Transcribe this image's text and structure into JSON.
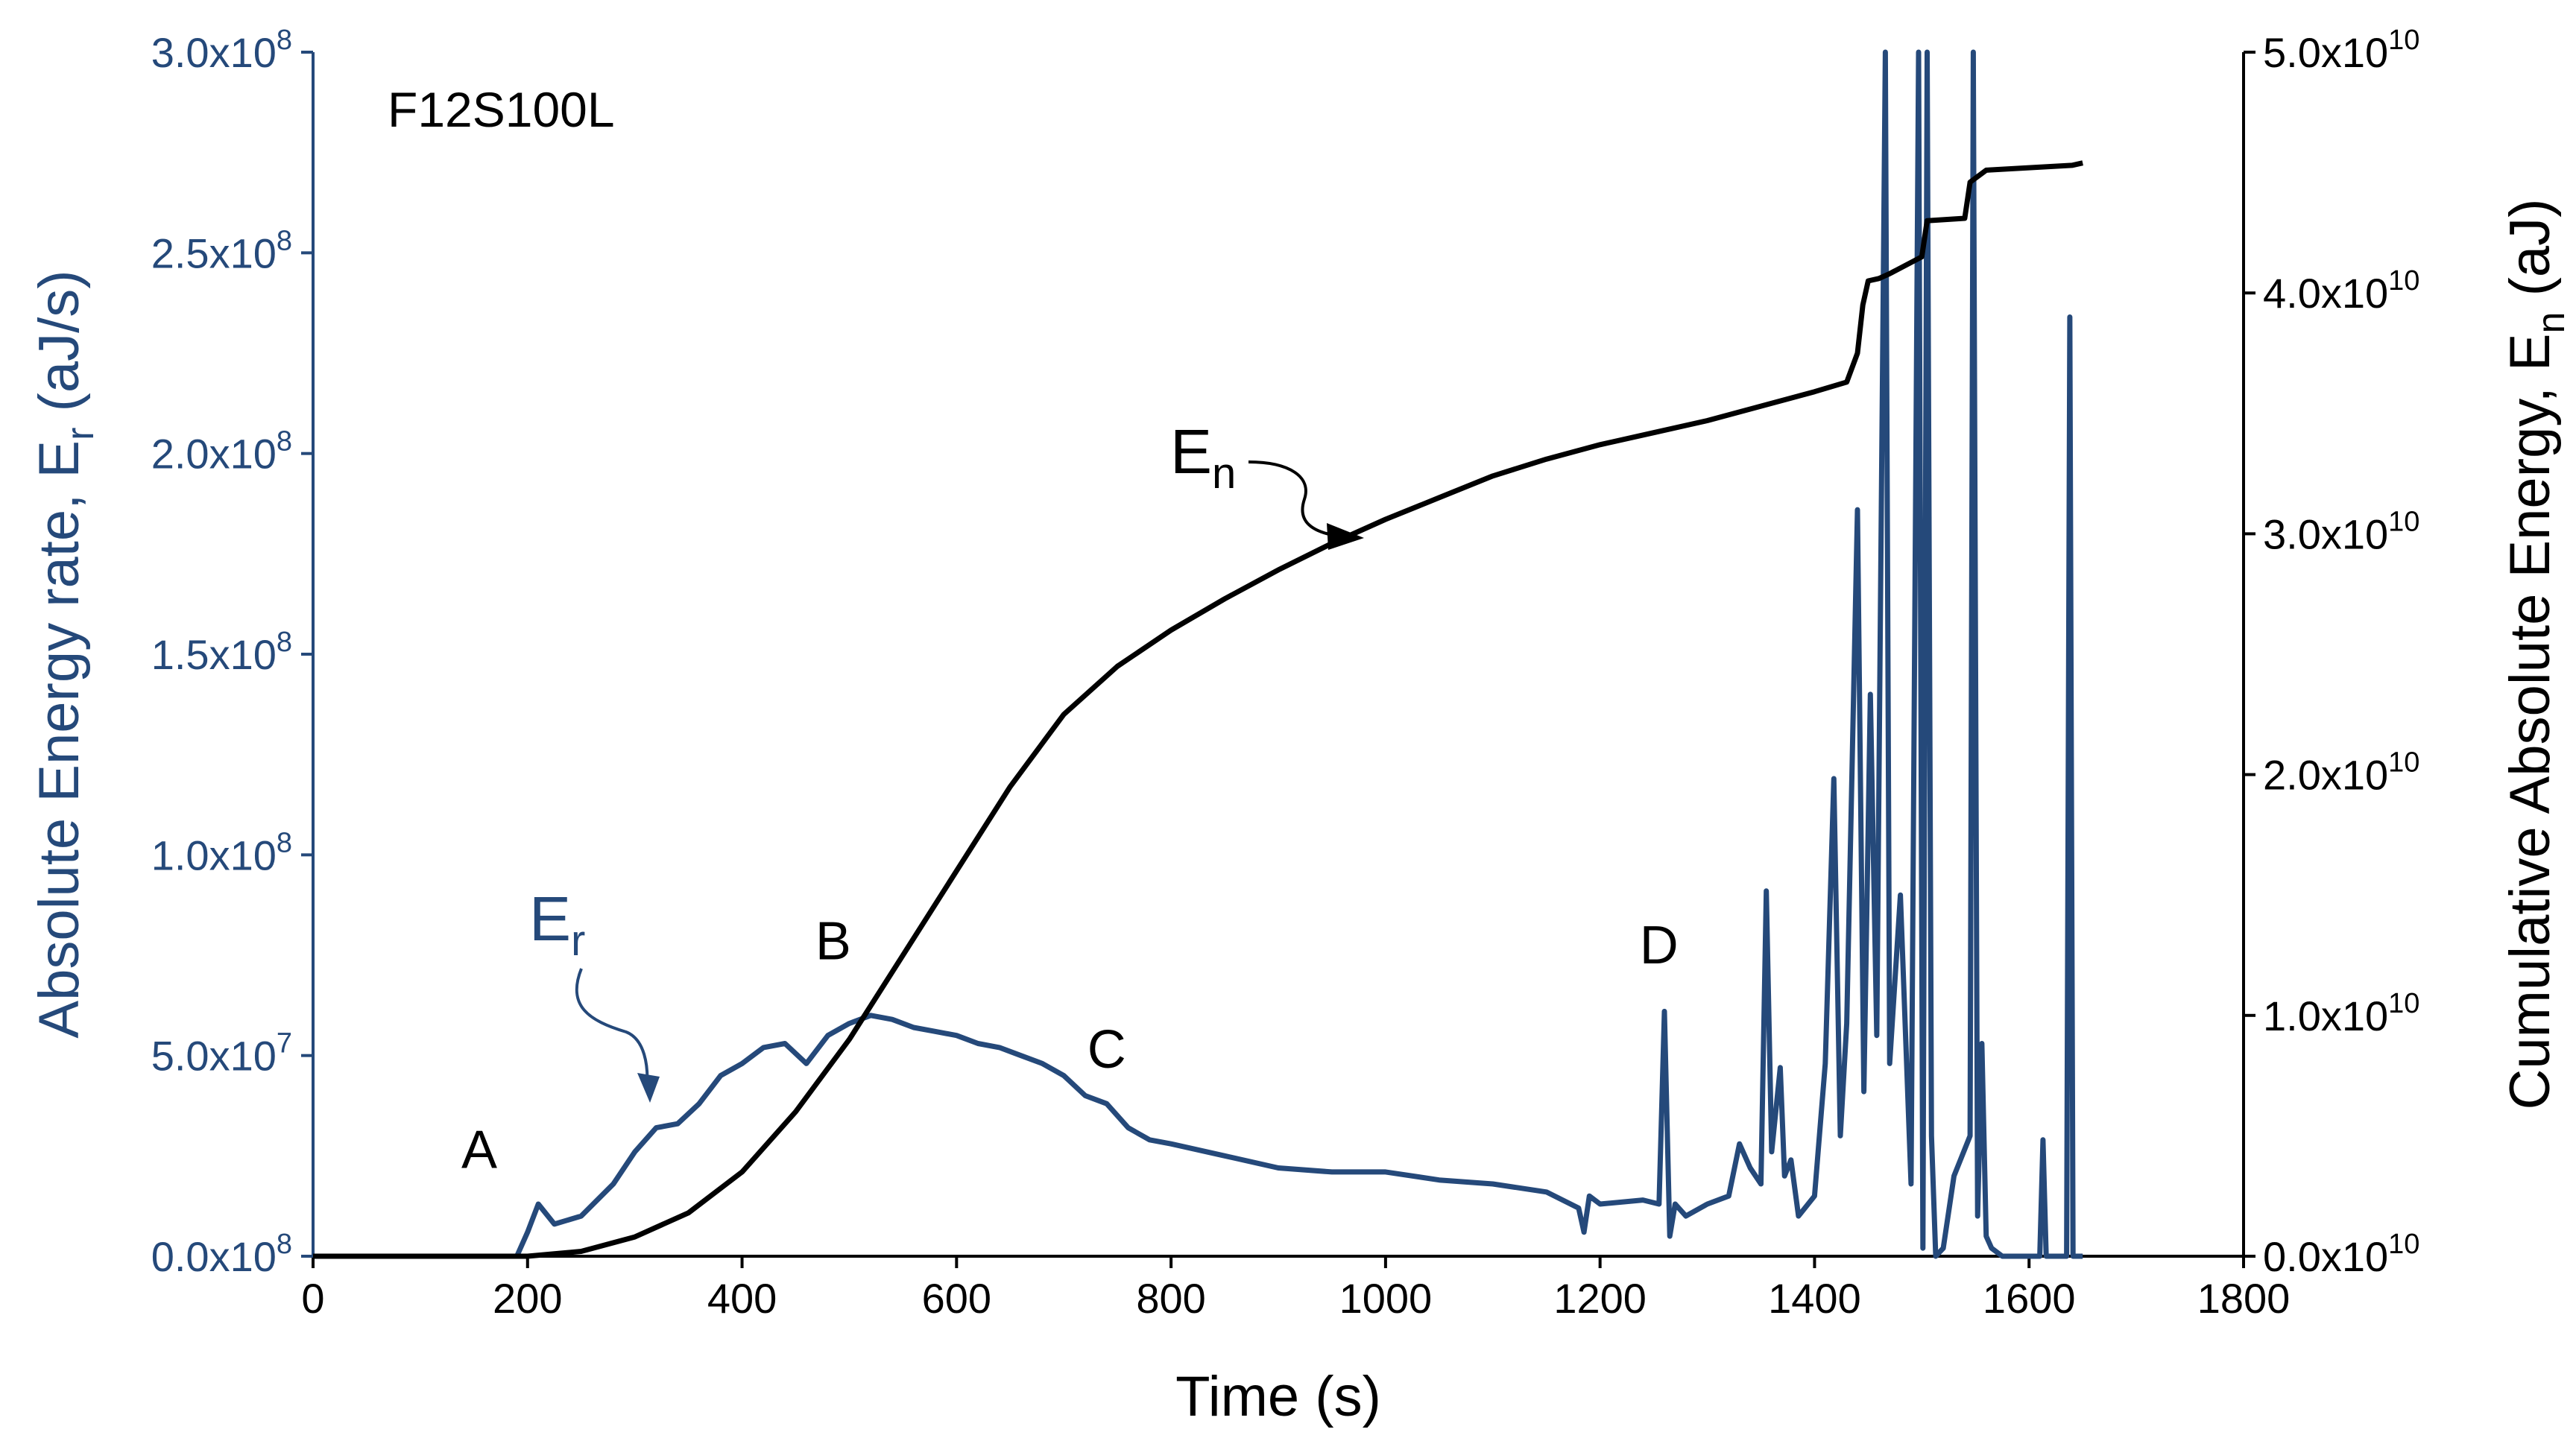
{
  "chart_data": {
    "type": "line",
    "title": "F12S100L",
    "xlabel": "Time (s)",
    "ylabel_left": {
      "main": "Absolute Energy rate, E",
      "sub": "r",
      "unit": " (aJ/s)"
    },
    "ylabel_right": {
      "main": "Cumulative Absolute Energy, E",
      "sub": "n",
      "unit": " (aJ)"
    },
    "xlim": [
      0,
      1800
    ],
    "ylim_left": [
      0,
      300000000
    ],
    "ylim_right": [
      0,
      50000000000
    ],
    "x_ticks": [
      "0",
      "200",
      "400",
      "600",
      "800",
      "1000",
      "1200",
      "1400",
      "1600",
      "1800"
    ],
    "y_ticks_left": [
      {
        "mant": "0.0x10",
        "exp": "8"
      },
      {
        "mant": "5.0x10",
        "exp": "7"
      },
      {
        "mant": "1.0x10",
        "exp": "8"
      },
      {
        "mant": "1.5x10",
        "exp": "8"
      },
      {
        "mant": "2.0x10",
        "exp": "8"
      },
      {
        "mant": "2.5x10",
        "exp": "8"
      },
      {
        "mant": "3.0x10",
        "exp": "8"
      }
    ],
    "y_ticks_right": [
      {
        "mant": "0.0x10",
        "exp": "10"
      },
      {
        "mant": "1.0x10",
        "exp": "10"
      },
      {
        "mant": "2.0x10",
        "exp": "10"
      },
      {
        "mant": "3.0x10",
        "exp": "10"
      },
      {
        "mant": "4.0x10",
        "exp": "10"
      },
      {
        "mant": "5.0x10",
        "exp": "10"
      }
    ],
    "colors": {
      "er": "#25497a",
      "en": "#000000"
    },
    "series": [
      {
        "name": "Er",
        "axis": "left",
        "label": {
          "main": "E",
          "sub": "r"
        },
        "x": [
          0,
          190,
          200,
          210,
          225,
          250,
          280,
          300,
          320,
          340,
          360,
          380,
          400,
          420,
          440,
          460,
          480,
          500,
          520,
          540,
          560,
          580,
          600,
          620,
          640,
          660,
          680,
          700,
          720,
          740,
          760,
          780,
          800,
          850,
          900,
          950,
          1000,
          1050,
          1100,
          1150,
          1180,
          1185,
          1190,
          1200,
          1240,
          1255,
          1260,
          1265,
          1270,
          1280,
          1300,
          1320,
          1330,
          1340,
          1350,
          1355,
          1360,
          1368,
          1372,
          1378,
          1385,
          1400,
          1410,
          1418,
          1424,
          1430,
          1440,
          1446,
          1452,
          1458,
          1462,
          1466,
          1470,
          1480,
          1490,
          1497,
          1501,
          1505,
          1509,
          1513,
          1520,
          1530,
          1545,
          1548,
          1552,
          1556,
          1560,
          1565,
          1575,
          1610,
          1613,
          1616,
          1635,
          1638,
          1641,
          1645,
          1650
        ],
        "y": [
          0,
          0,
          6000000,
          13000000,
          8000000,
          10000000,
          18000000,
          26000000,
          32000000,
          33000000,
          38000000,
          45000000,
          48000000,
          52000000,
          53000000,
          48000000,
          55000000,
          58000000,
          60000000,
          59000000,
          57000000,
          56000000,
          55000000,
          53000000,
          52000000,
          50000000,
          48000000,
          45000000,
          40000000,
          38000000,
          32000000,
          29000000,
          28000000,
          25000000,
          22000000,
          21000000,
          21000000,
          19000000,
          18000000,
          16000000,
          12000000,
          6000000,
          15000000,
          13000000,
          14000000,
          13000000,
          61000000,
          5000000,
          13000000,
          10000000,
          13000000,
          15000000,
          28000000,
          22000000,
          18000000,
          91000000,
          26000000,
          47000000,
          20000000,
          24000000,
          10000000,
          15000000,
          48000000,
          119000000,
          30000000,
          58000000,
          186000000,
          41000000,
          140000000,
          55000000,
          180000000,
          300000000,
          48000000,
          90000000,
          18000000,
          300000000,
          2000000,
          300000000,
          30000000,
          0,
          2000000,
          20000000,
          30000000,
          300000000,
          10000000,
          53000000,
          5000000,
          2000000,
          0,
          0,
          29000000,
          0,
          0,
          234000000,
          0,
          0,
          0
        ]
      },
      {
        "name": "En",
        "axis": "right",
        "label": {
          "main": "E",
          "sub": "n"
        },
        "x": [
          0,
          180,
          200,
          250,
          300,
          350,
          400,
          450,
          500,
          550,
          600,
          650,
          700,
          750,
          800,
          850,
          900,
          950,
          1000,
          1050,
          1100,
          1150,
          1200,
          1250,
          1300,
          1350,
          1400,
          1430,
          1440,
          1445,
          1450,
          1460,
          1470,
          1500,
          1505,
          1540,
          1545,
          1560,
          1600,
          1640,
          1650
        ],
        "y": [
          0,
          0,
          0,
          200000000,
          800000000,
          1800000000,
          3500000000,
          6000000000,
          9000000000,
          12500000000,
          16000000000,
          19500000000,
          22500000000,
          24500000000,
          26000000000,
          27300000000,
          28500000000,
          29600000000,
          30600000000,
          31500000000,
          32400000000,
          33100000000,
          33700000000,
          34200000000,
          34700000000,
          35300000000,
          35900000000,
          36300000000,
          37500000000,
          39500000000,
          40500000000,
          40600000000,
          40800000000,
          41500000000,
          43000000000,
          43100000000,
          44600000000,
          45100000000,
          45200000000,
          45300000000,
          45400000000
        ]
      }
    ],
    "annotations": [
      {
        "id": "A",
        "text": "A",
        "x": 155,
        "y_left": 22000000
      },
      {
        "id": "B",
        "text": "B",
        "x": 485,
        "y_left": 74000000
      },
      {
        "id": "C",
        "text": "C",
        "x": 740,
        "y_left": 47000000
      },
      {
        "id": "D",
        "text": "D",
        "x": 1255,
        "y_left": 73000000
      }
    ]
  }
}
